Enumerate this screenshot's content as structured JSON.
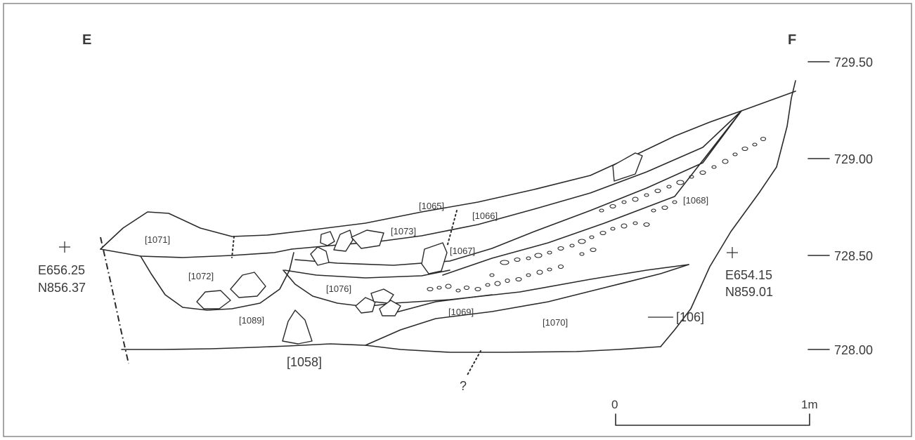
{
  "section": {
    "end_left": "E",
    "end_right": "F"
  },
  "levels": [
    "729.50",
    "729.00",
    "728.50",
    "728.00"
  ],
  "datum_left": {
    "easting": "E656.25",
    "northing": "N856.37"
  },
  "datum_right": {
    "easting": "E654.15",
    "northing": "N859.01"
  },
  "contexts": {
    "c1058": "[1058]",
    "c1065": "[1065]",
    "c1066": "[1066]",
    "c1067": "[1067]",
    "c1068": "[1068]",
    "c1069": "[1069]",
    "c1070": "[1070]",
    "c1071": "[1071]",
    "c1072": "[1072]",
    "c1073": "[1073]",
    "c1076": "[1076]",
    "c1089": "[1089]",
    "c106": "[106]"
  },
  "uncertain_mark": "?",
  "scale": {
    "start": "0",
    "end": "1m"
  },
  "colors": {
    "ink": "#2a2a2a",
    "frame": "#8a8a8a",
    "text": "#3a3a3a"
  }
}
